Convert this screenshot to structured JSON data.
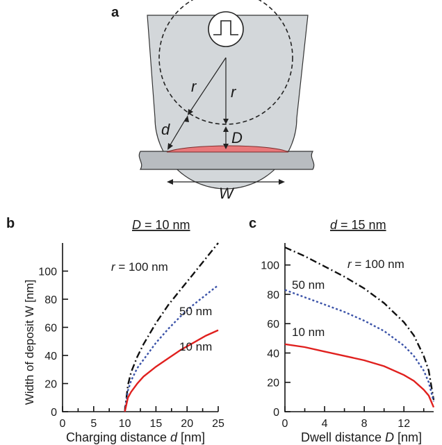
{
  "panel_a": {
    "label": "a",
    "label_r1": "r",
    "label_r2": "r",
    "label_d": "d",
    "label_D": "D",
    "label_W": "W",
    "colors": {
      "tip": "#d3d7da",
      "substrate": "#b8bcc0",
      "deposit": "#e9787a"
    },
    "icons": [
      "pulse-icon"
    ]
  },
  "chart_data": [
    {
      "type": "line",
      "panel_label": "b",
      "title_var": "D",
      "title_rest": " = 10 nm",
      "xlabel_main": "Charging distance ",
      "xlabel_var": "d",
      "xlabel_unit": " [nm]",
      "ylabel": "Width of deposit W [nm]",
      "xlim": [
        0,
        25
      ],
      "ylim": [
        0,
        120
      ],
      "xticks": [
        "0",
        "5",
        "10",
        "15",
        "20",
        "25"
      ],
      "yticks": [
        "0",
        "20",
        "40",
        "60",
        "80",
        "100"
      ],
      "series": [
        {
          "name": "r = 100 nm",
          "name_var": "r",
          "name_rest": " = 100 nm",
          "color": "#111111",
          "style": "dashdot",
          "x": [
            10,
            10.5,
            11,
            12,
            13,
            15,
            17,
            19,
            21,
            23,
            25
          ],
          "y": [
            0,
            19,
            28,
            39,
            48,
            63,
            76,
            87,
            98,
            109,
            120
          ]
        },
        {
          "name": "50 nm",
          "color": "#3a52a8",
          "style": "dotted",
          "x": [
            10,
            10.5,
            11,
            12,
            13,
            15,
            17,
            19,
            21,
            23,
            25
          ],
          "y": [
            0,
            15,
            22,
            31,
            37,
            49,
            59,
            68,
            76,
            83,
            90
          ]
        },
        {
          "name": "10 nm",
          "color": "#e0201e",
          "style": "solid",
          "x": [
            10,
            10.5,
            11,
            12,
            13,
            15,
            17,
            19,
            21,
            23,
            25
          ],
          "y": [
            0,
            10,
            14,
            20,
            25,
            32,
            38,
            44,
            49,
            54,
            58
          ]
        }
      ]
    },
    {
      "type": "line",
      "panel_label": "c",
      "title_var": "d",
      "title_rest": " = 15 nm",
      "xlabel_main": "Dwell distance ",
      "xlabel_var": "D",
      "xlabel_unit": " [nm]",
      "xlim": [
        0,
        15
      ],
      "ylim": [
        0,
        115
      ],
      "xticks": [
        "0",
        "4",
        "8",
        "12"
      ],
      "yticks": [
        "0",
        "20",
        "40",
        "60",
        "80",
        "100"
      ],
      "series": [
        {
          "name": "r = 100 nm",
          "name_var": "r",
          "name_rest": " = 100 nm",
          "color": "#111111",
          "style": "dashdot",
          "x": [
            0,
            2,
            4,
            6,
            8,
            10,
            12,
            13,
            14,
            14.5,
            15
          ],
          "y": [
            112,
            106,
            99,
            92,
            84,
            74,
            61,
            52,
            38,
            28,
            8
          ]
        },
        {
          "name": "50 nm",
          "color": "#3a52a8",
          "style": "dotted",
          "x": [
            0,
            2,
            4,
            6,
            8,
            10,
            12,
            13,
            14,
            14.5,
            15
          ],
          "y": [
            83,
            78,
            73,
            68,
            62,
            55,
            45,
            38,
            28,
            20,
            7
          ]
        },
        {
          "name": "10 nm",
          "color": "#e0201e",
          "style": "solid",
          "x": [
            0,
            2,
            4,
            6,
            8,
            10,
            12,
            13,
            14,
            14.5,
            15
          ],
          "y": [
            46,
            44,
            41,
            38,
            35,
            31,
            25,
            21,
            15,
            11,
            3
          ]
        }
      ]
    }
  ]
}
